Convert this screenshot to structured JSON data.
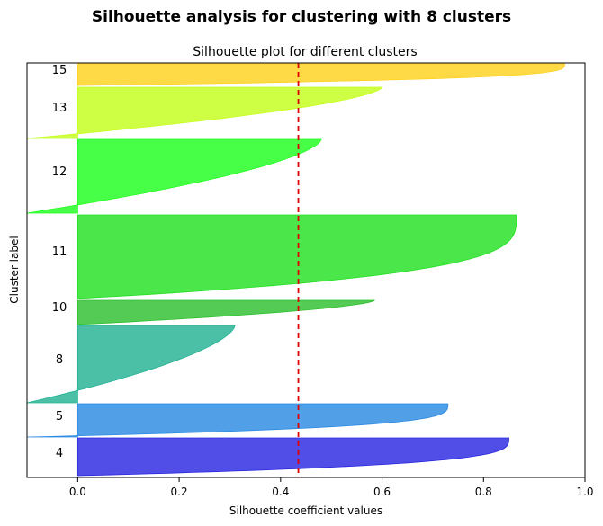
{
  "chart_data": {
    "type": "area",
    "suptitle": "Silhouette analysis for clustering with 8 clusters",
    "title": "Silhouette plot for different clusters",
    "xlabel": "Silhouette coefficient values",
    "ylabel": "Cluster label",
    "xlim": [
      -0.1,
      1.0
    ],
    "xticks": [
      0.0,
      0.2,
      0.4,
      0.6,
      0.8,
      1.0
    ],
    "xtick_labels": [
      "0.0",
      "0.2",
      "0.4",
      "0.6",
      "0.8",
      "1.0"
    ],
    "average_silhouette": 0.435,
    "average_line_color": "#e00000",
    "clusters": [
      {
        "label": "4",
        "color": "#2a27e0",
        "min": -0.0,
        "max": 0.85
      },
      {
        "label": "5",
        "color": "#2b8ae2",
        "min": -0.1,
        "max": 0.73
      },
      {
        "label": "8",
        "color": "#23b294",
        "min": -0.1,
        "max": 0.31
      },
      {
        "label": "10",
        "color": "#2ec02e",
        "min": 0.0,
        "max": 0.585
      },
      {
        "label": "11",
        "color": "#22e022",
        "min": 0.0,
        "max": 0.865
      },
      {
        "label": "12",
        "color": "#20ff20",
        "min": -0.1,
        "max": 0.48
      },
      {
        "label": "13",
        "color": "#c4ff1c",
        "min": -0.1,
        "max": 0.6
      },
      {
        "label": "15",
        "color": "#ffd21f",
        "min": 0.0,
        "max": 0.96
      }
    ]
  }
}
